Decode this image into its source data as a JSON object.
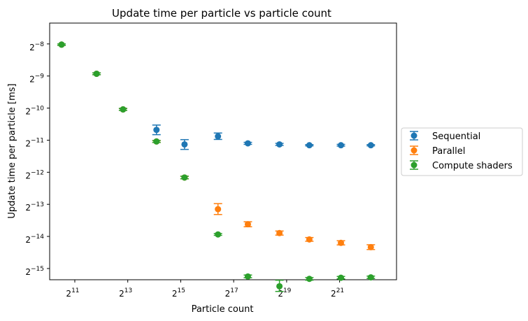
{
  "chart_data": {
    "type": "scatter",
    "title": "Update time per particle vs particle count",
    "xlabel": "Particle count",
    "ylabel": "Update time per particle [ms]",
    "x_scale": "log2",
    "y_scale": "log2",
    "x_range_log2": [
      10.05,
      23.15
    ],
    "y_range_log2": [
      -15.35,
      -7.35
    ],
    "x_ticks": [
      {
        "base": "2",
        "exp": "11",
        "log2": 11
      },
      {
        "base": "2",
        "exp": "13",
        "log2": 13
      },
      {
        "base": "2",
        "exp": "15",
        "log2": 15
      },
      {
        "base": "2",
        "exp": "17",
        "log2": 17
      },
      {
        "base": "2",
        "exp": "19",
        "log2": 19
      },
      {
        "base": "2",
        "exp": "21",
        "log2": 21
      }
    ],
    "y_ticks": [
      {
        "base": "2",
        "exp": "−8",
        "log2": -8
      },
      {
        "base": "2",
        "exp": "−9",
        "log2": -9
      },
      {
        "base": "2",
        "exp": "−10",
        "log2": -10
      },
      {
        "base": "2",
        "exp": "−11",
        "log2": -11
      },
      {
        "base": "2",
        "exp": "−12",
        "log2": -12
      },
      {
        "base": "2",
        "exp": "−13",
        "log2": -13
      },
      {
        "base": "2",
        "exp": "−14",
        "log2": -14
      },
      {
        "base": "2",
        "exp": "−15",
        "log2": -15
      }
    ],
    "legend_position": "outside right",
    "error_bars": true,
    "series": [
      {
        "name": "Sequential",
        "color": "#1f77b4",
        "x": [
          1448,
          3620,
          7241,
          17378,
          36204,
          86888,
          190066,
          434442,
          950276,
          2171973,
          4751380
        ],
        "y": [
          0.00385,
          0.00205,
          0.00095,
          0.00061,
          0.000446,
          0.000531,
          0.000456,
          0.000446,
          0.000438,
          0.000438,
          0.000438
        ],
        "y_lower": [
          0.00379,
          0.00201,
          0.00093,
          0.00055,
          0.0004,
          0.000496,
          0.000446,
          0.000436,
          0.000432,
          0.00043,
          0.000432
        ],
        "y_upper": [
          0.00391,
          0.00209,
          0.00097,
          0.000677,
          0.000494,
          0.00057,
          0.000466,
          0.000456,
          0.000444,
          0.000446,
          0.000444
        ]
      },
      {
        "name": "Parallel",
        "color": "#ff7f0e",
        "x": [
          1448,
          3620,
          7241,
          17378,
          36204,
          86888,
          190066,
          434442,
          950276,
          2171973,
          4751380
        ],
        "y": [
          0.00385,
          0.00205,
          0.00095,
          0.000475,
          0.000218,
          0.00011,
          7.94e-05,
          6.56e-05,
          5.72e-05,
          5.31e-05,
          4.84e-05
        ],
        "y_lower": [
          0.00379,
          0.00201,
          0.00093,
          0.000465,
          0.000212,
          9.8e-05,
          7.52e-05,
          6.28e-05,
          5.5e-05,
          5.08e-05,
          4.6e-05
        ],
        "y_upper": [
          0.00391,
          0.00209,
          0.00097,
          0.000485,
          0.000224,
          0.000124,
          8.38e-05,
          6.86e-05,
          5.96e-05,
          5.56e-05,
          5.1e-05
        ]
      },
      {
        "name": "Compute shaders",
        "color": "#2ca02c",
        "x": [
          1448,
          3620,
          7241,
          17378,
          36204,
          86888,
          190066,
          434442,
          950276,
          2171973,
          4751380
        ],
        "y": [
          0.00385,
          0.00205,
          0.00095,
          0.000475,
          0.000218,
          6.37e-05,
          2.57e-05,
          2.08e-05,
          2.44e-05,
          2.5e-05,
          2.52e-05
        ],
        "y_lower": [
          0.00379,
          0.00201,
          0.00093,
          0.000465,
          0.000212,
          6.25e-05,
          2.5e-05,
          1.86e-05,
          2.37e-05,
          2.44e-05,
          2.46e-05
        ],
        "y_upper": [
          0.00391,
          0.00209,
          0.00097,
          0.000485,
          0.000224,
          6.5e-05,
          2.65e-05,
          2.37e-05,
          2.51e-05,
          2.57e-05,
          2.59e-05
        ]
      }
    ]
  }
}
